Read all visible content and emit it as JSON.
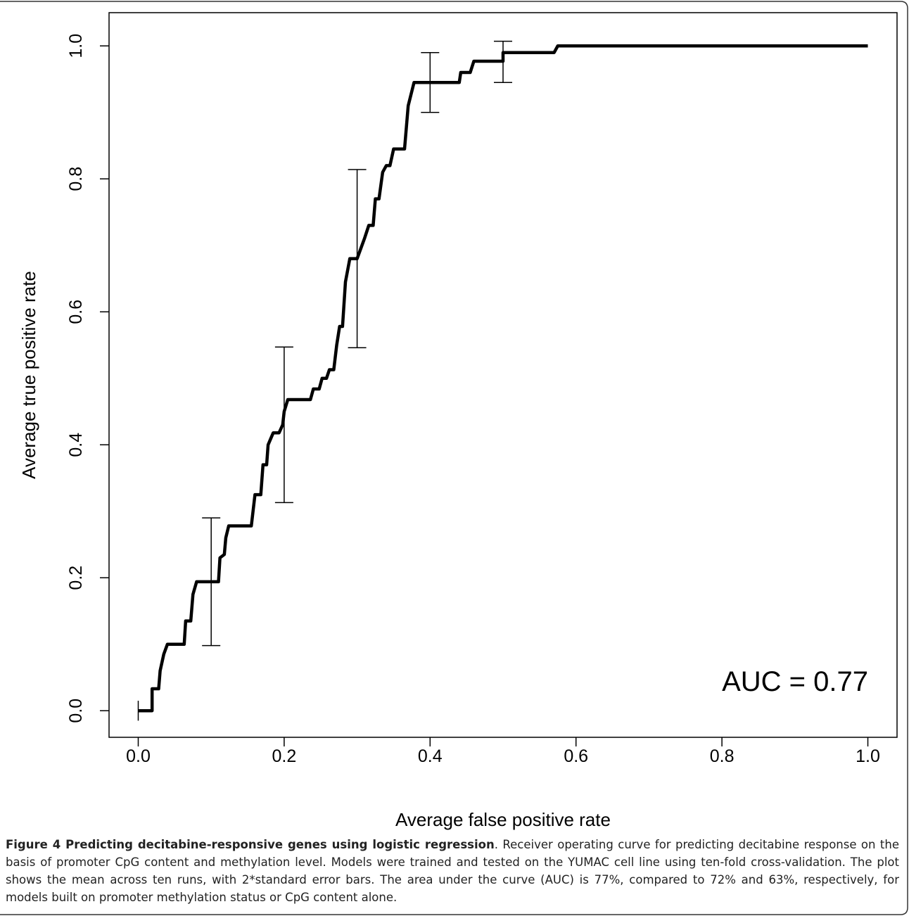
{
  "chart_data": {
    "type": "line",
    "xlabel": "Average false positive rate",
    "ylabel": "Average true positive rate",
    "annotation": "AUC = 0.77",
    "color": "#000000",
    "xlim": [
      -0.04,
      1.04
    ],
    "ylim": [
      -0.04,
      1.05
    ],
    "xticks": [
      {
        "value": 0,
        "label": "0.0"
      },
      {
        "value": 0.2,
        "label": "0.2"
      },
      {
        "value": 0.4,
        "label": "0.4"
      },
      {
        "value": 0.6,
        "label": "0.6"
      },
      {
        "value": 0.8,
        "label": "0.8"
      },
      {
        "value": 1,
        "label": "1.0"
      }
    ],
    "yticks": [
      {
        "value": 0,
        "label": "0.0"
      },
      {
        "value": 0.2,
        "label": "0.2"
      },
      {
        "value": 0.4,
        "label": "0.4"
      },
      {
        "value": 0.6,
        "label": "0.6"
      },
      {
        "value": 0.8,
        "label": "0.8"
      },
      {
        "value": 1,
        "label": "1.0"
      }
    ],
    "x": [
      0,
      0.019,
      0.019,
      0.028,
      0.03,
      0.035,
      0.04,
      0.063,
      0.065,
      0.072,
      0.075,
      0.08,
      0.11,
      0.112,
      0.118,
      0.12,
      0.124,
      0.155,
      0.16,
      0.168,
      0.171,
      0.176,
      0.178,
      0.185,
      0.193,
      0.198,
      0.2,
      0.205,
      0.236,
      0.24,
      0.248,
      0.252,
      0.258,
      0.262,
      0.268,
      0.272,
      0.276,
      0.28,
      0.284,
      0.29,
      0.3,
      0.305,
      0.31,
      0.316,
      0.322,
      0.325,
      0.33,
      0.335,
      0.34,
      0.345,
      0.35,
      0.365,
      0.37,
      0.378,
      0.44,
      0.442,
      0.455,
      0.46,
      0.5,
      0.5,
      0.57,
      0.575,
      1.0
    ],
    "values": [
      0,
      0,
      0.033,
      0.033,
      0.06,
      0.085,
      0.1,
      0.1,
      0.135,
      0.135,
      0.175,
      0.194,
      0.194,
      0.23,
      0.235,
      0.26,
      0.278,
      0.278,
      0.325,
      0.325,
      0.37,
      0.37,
      0.4,
      0.418,
      0.418,
      0.43,
      0.45,
      0.468,
      0.468,
      0.484,
      0.484,
      0.5,
      0.5,
      0.513,
      0.513,
      0.55,
      0.578,
      0.578,
      0.645,
      0.68,
      0.68,
      0.695,
      0.71,
      0.73,
      0.73,
      0.77,
      0.77,
      0.81,
      0.82,
      0.82,
      0.845,
      0.845,
      0.91,
      0.945,
      0.945,
      0.96,
      0.96,
      0.977,
      0.977,
      0.99,
      0.99,
      1.0,
      1.0
    ],
    "error_bars": {
      "x": [
        0,
        0.1,
        0.2,
        0.3,
        0.4,
        0.5
      ],
      "values": [
        0,
        0.194,
        0.43,
        0.68,
        0.945,
        0.976
      ],
      "errors": [
        0.015,
        0.096,
        0.117,
        0.134,
        0.045,
        0.031
      ]
    }
  },
  "caption": {
    "title": "Figure 4 Predicting decitabine-responsive genes using logistic regression",
    "text": ". Receiver operating curve for predicting decitabine response on the basis of promoter CpG content and methylation level. Models were trained and tested on the YUMAC cell line using ten-fold cross-validation. The plot shows the mean across ten runs, with 2*standard error bars. The area under the curve (AUC) is 77%, compared to 72% and 63%, respectively, for models built on promoter methylation status or CpG content alone."
  }
}
